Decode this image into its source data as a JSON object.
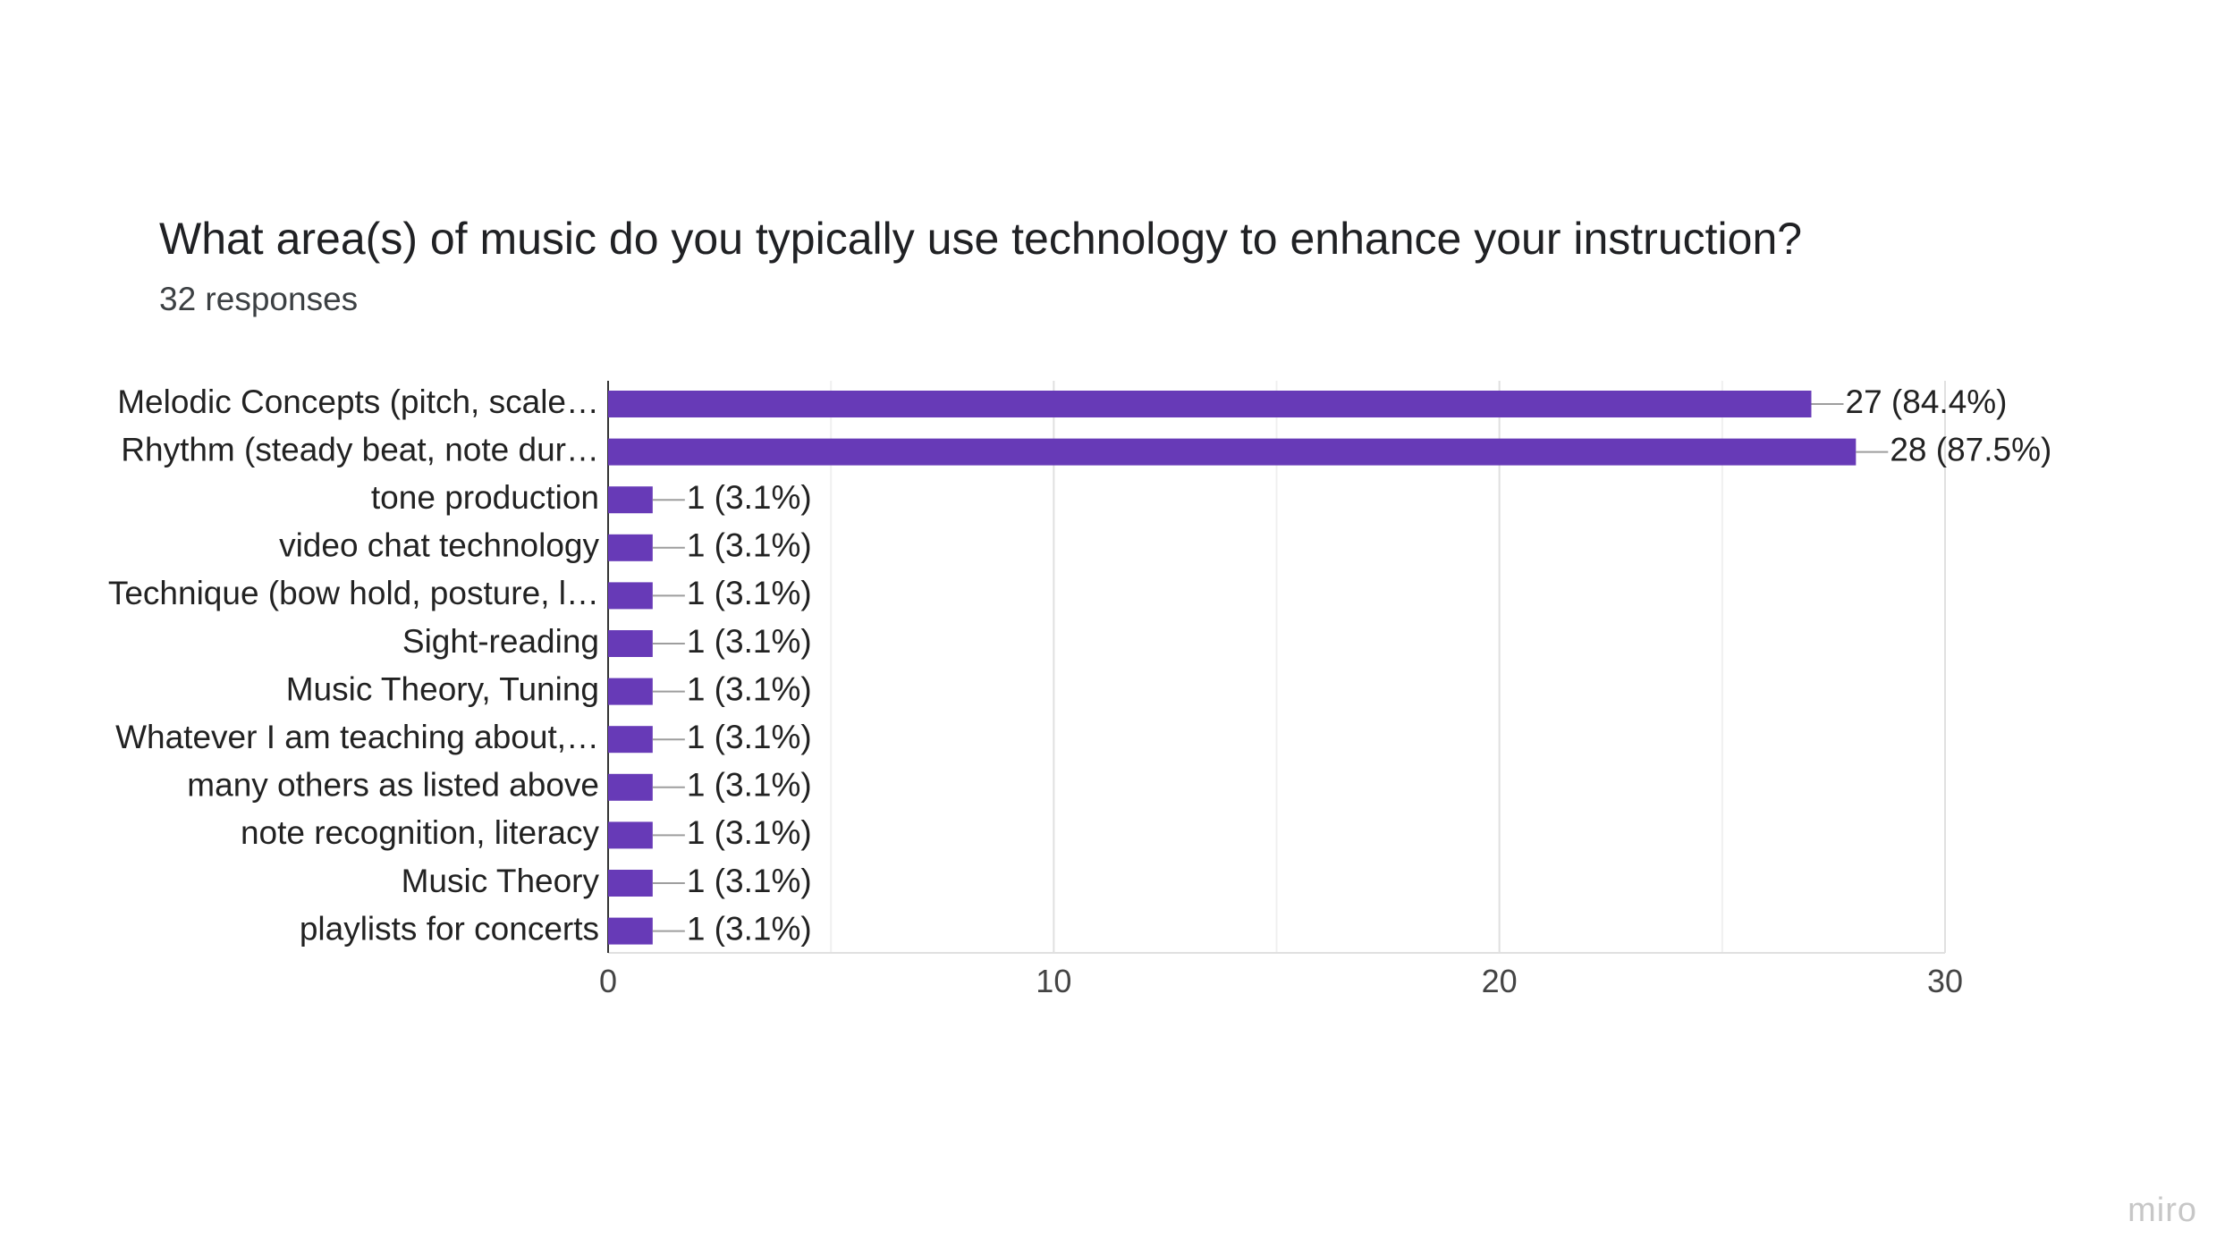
{
  "title": "What area(s) of music do you typically use technology to enhance your instruction?",
  "subtitle": "32 responses",
  "watermark": "miro",
  "chart_data": {
    "type": "bar",
    "orientation": "horizontal",
    "title": "What area(s) of music do you typically use technology to enhance your instruction?",
    "subtitle": "32 responses",
    "categories": [
      "Melodic Concepts (pitch, scale…",
      "Rhythm (steady beat, note dur…",
      "tone production",
      "video chat technology",
      "Technique (bow hold, posture, l…",
      "Sight-reading",
      "Music Theory, Tuning",
      "Whatever I am teaching about,…",
      "many others as listed above",
      "note recognition, literacy",
      "Music Theory",
      "playlists for concerts"
    ],
    "values": [
      27,
      28,
      1,
      1,
      1,
      1,
      1,
      1,
      1,
      1,
      1,
      1
    ],
    "data_labels": [
      "27 (84.4%)",
      "28 (87.5%)",
      "1 (3.1%)",
      "1 (3.1%)",
      "1 (3.1%)",
      "1 (3.1%)",
      "1 (3.1%)",
      "1 (3.1%)",
      "1 (3.1%)",
      "1 (3.1%)",
      "1 (3.1%)",
      "1 (3.1%)"
    ],
    "xlim": [
      0,
      30
    ],
    "x_ticks": [
      0,
      10,
      20,
      30
    ],
    "x_tick_labels": [
      "0",
      "10",
      "20",
      "30"
    ],
    "xlabel": "",
    "ylabel": "",
    "grid": true,
    "legend": "none",
    "bar_color": "#673ab7"
  }
}
